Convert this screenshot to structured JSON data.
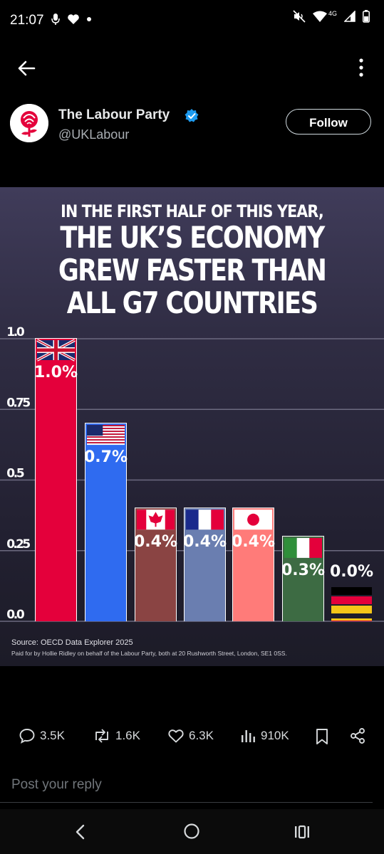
{
  "status_bar": {
    "time": "21:07",
    "network": "4G"
  },
  "profile": {
    "name": "The Labour Party",
    "handle": "@UKLabour",
    "follow_label": "Follow",
    "verified_color": "#1d9bf0"
  },
  "graphic": {
    "headline_line1": "IN THE FIRST HALF OF THIS YEAR,",
    "headline_line2": "THE UK’S ECONOMY",
    "headline_line3": "GREW FASTER THAN",
    "headline_line4": "ALL G7 COUNTRIES",
    "source": "Source: OECD Data Explorer 2025",
    "paid_by": "Paid for by Hollie Ridley on behalf of the Labour Party, both at 20 Rushworth Street, London, SE1 0SS."
  },
  "chart_data": {
    "type": "bar",
    "categories": [
      "UK",
      "USA",
      "Canada",
      "France",
      "Japan",
      "Italy",
      "Germany"
    ],
    "values": [
      1.0,
      0.7,
      0.4,
      0.4,
      0.4,
      0.3,
      0.0
    ],
    "data_labels": [
      "1.0%",
      "0.7%",
      "0.4%",
      "0.4%",
      "0.4%",
      "0.3%",
      "0.0%"
    ],
    "bar_colors": [
      "#e4003b",
      "#2f6bf0",
      "#8a4443",
      "#6a7eb0",
      "#ff7b79",
      "#3d6b43",
      "#e4003b"
    ],
    "y_ticks": [
      "0.0",
      "0.25",
      "0.5",
      "0.75",
      "1.0"
    ],
    "y_tick_values": [
      0,
      0.25,
      0.5,
      0.75,
      1.0
    ],
    "ylim": [
      0,
      1.0
    ],
    "grid": true
  },
  "actions": {
    "replies": "3.5K",
    "reposts": "1.6K",
    "likes": "6.3K",
    "views": "910K"
  },
  "reply_placeholder": "Post your reply"
}
